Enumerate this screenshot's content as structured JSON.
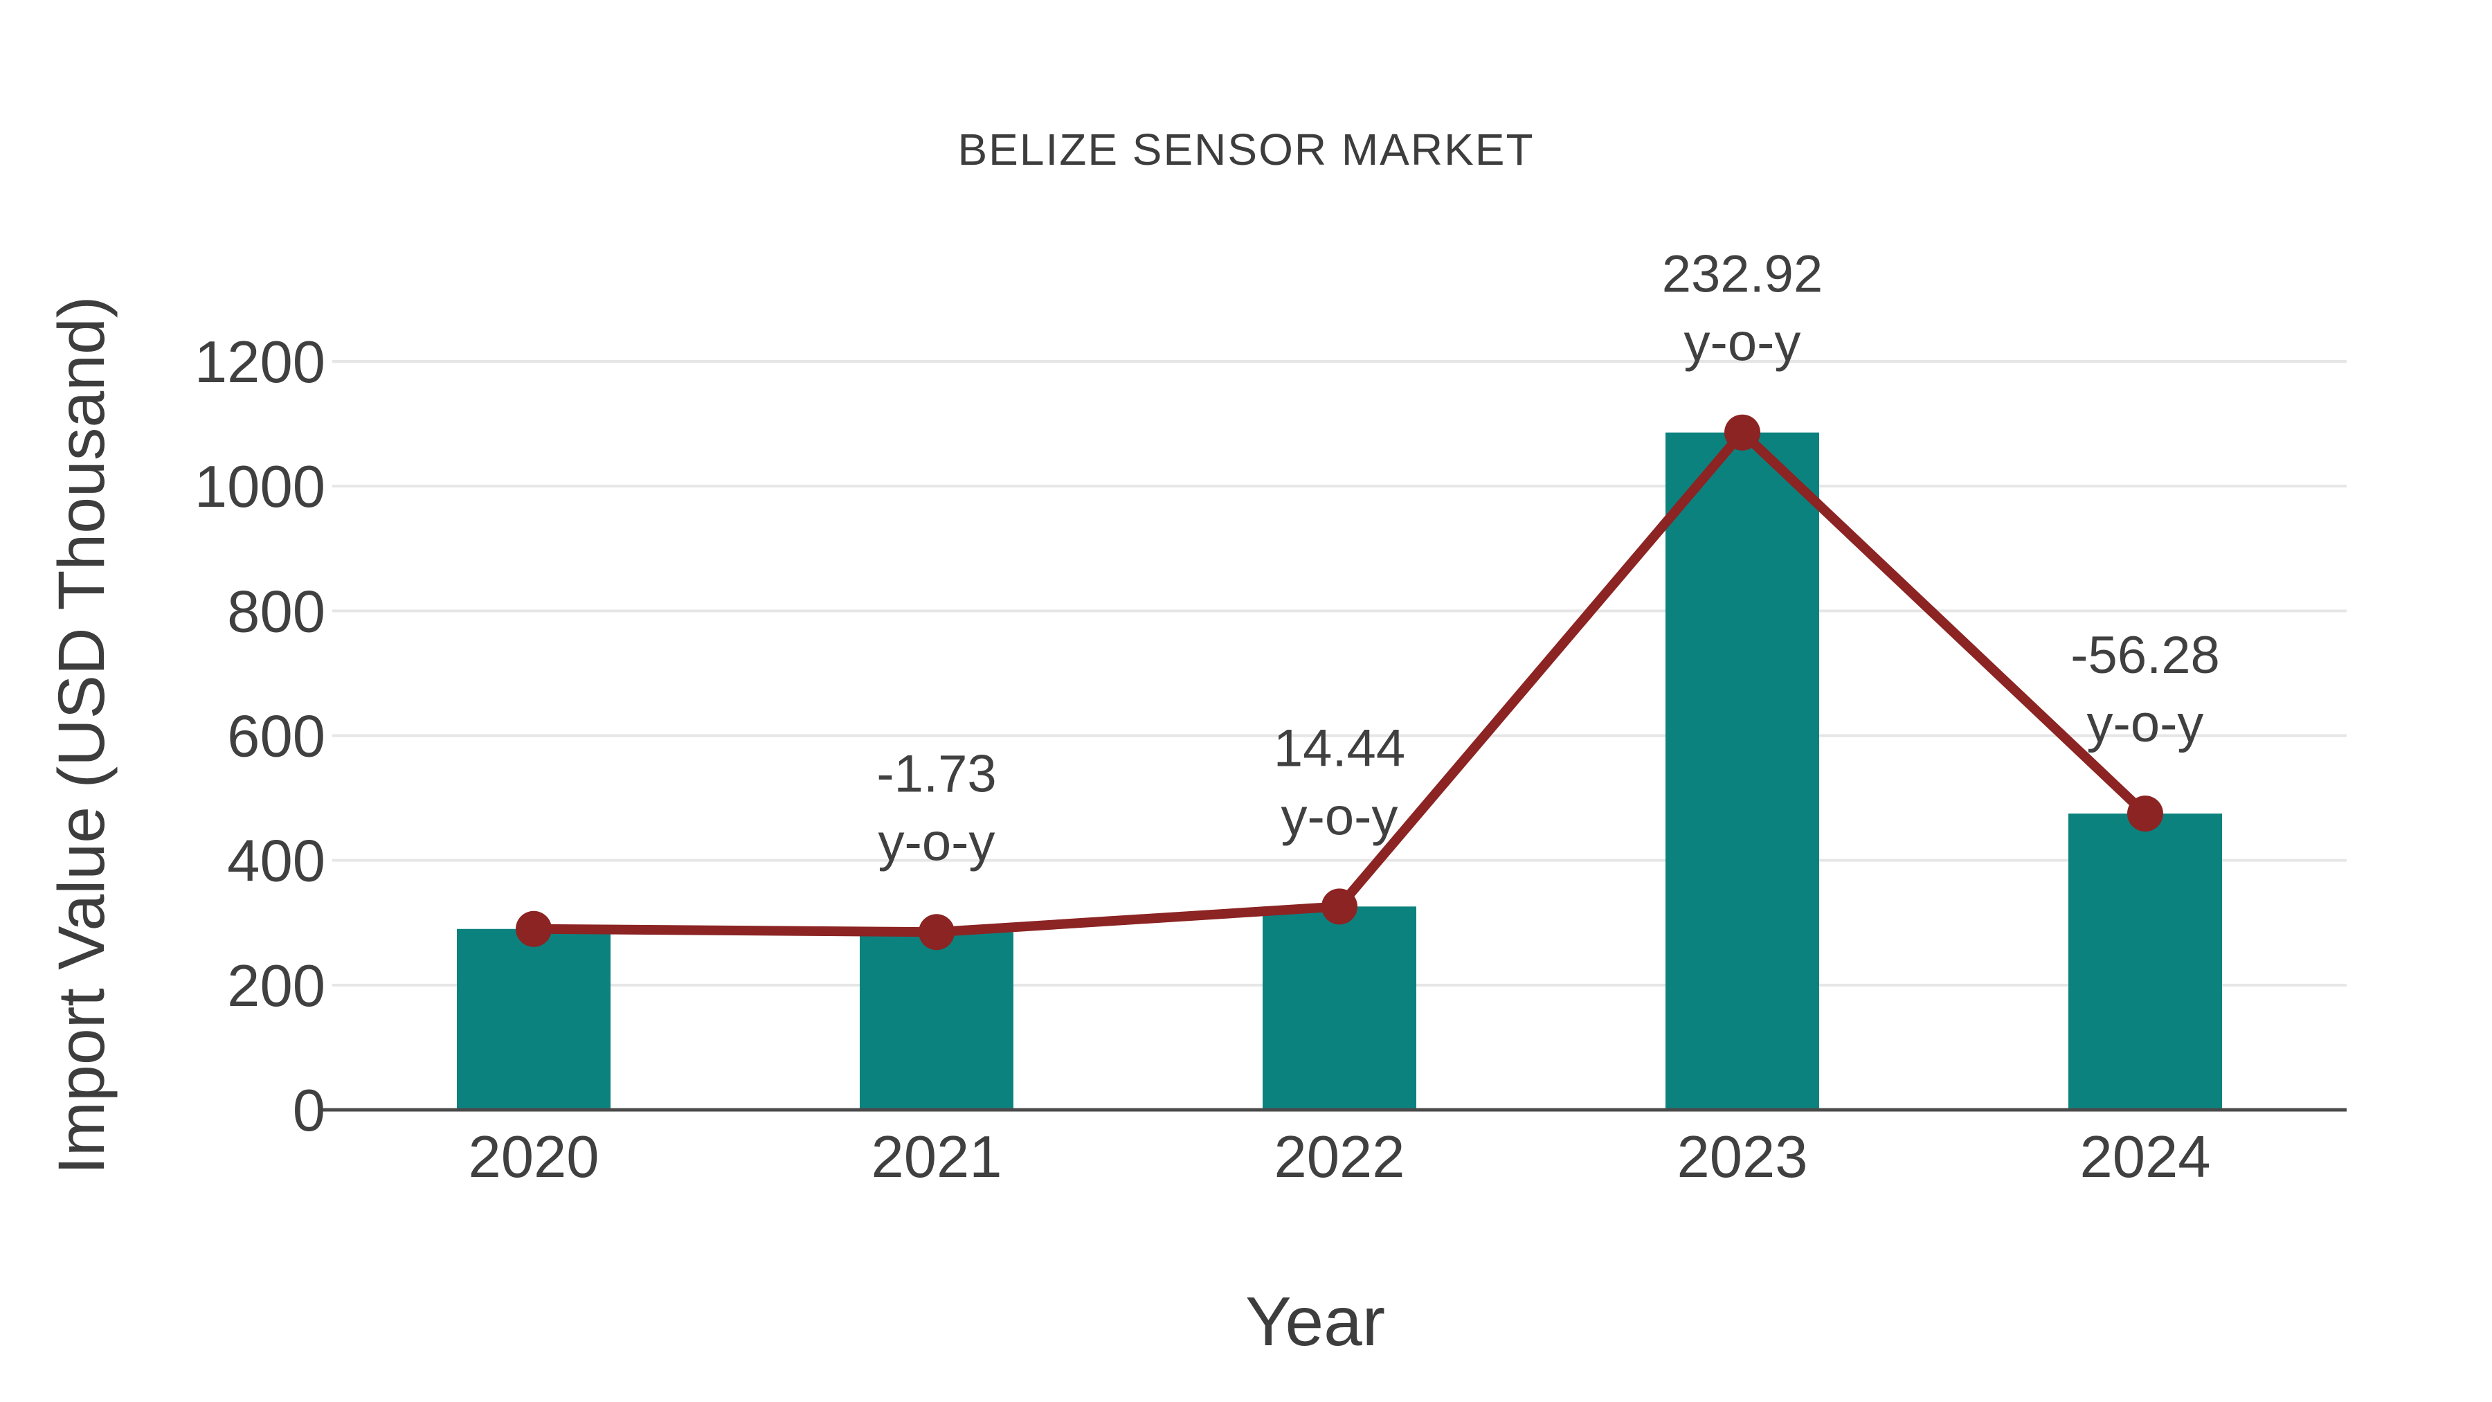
{
  "page": {
    "background": "#ffffff"
  },
  "chart_data": {
    "type": "bar",
    "subtype": "bar-with-line-overlay",
    "title": "BELIZE SENSOR MARKET",
    "xlabel": "Year",
    "ylabel": "Import Value (USD Thousand)",
    "categories": [
      "2020",
      "2021",
      "2022",
      "2023",
      "2024"
    ],
    "series": [
      {
        "name": "import-value-bars",
        "type": "bar",
        "values": [
          290,
          285,
          326,
          1086,
          475
        ]
      },
      {
        "name": "import-value-trend",
        "type": "line",
        "values": [
          290,
          285,
          326,
          1086,
          475
        ]
      }
    ],
    "annotations": [
      {
        "category": "2021",
        "line1": "-1.73",
        "line2": "y-o-y"
      },
      {
        "category": "2022",
        "line1": "14.44",
        "line2": "y-o-y"
      },
      {
        "category": "2023",
        "line1": "232.92",
        "line2": "y-o-y"
      },
      {
        "category": "2024",
        "line1": "-56.28",
        "line2": "y-o-y"
      }
    ],
    "ylim": [
      0,
      1200
    ],
    "yticks": [
      0,
      200,
      400,
      600,
      800,
      1000,
      1200
    ],
    "grid": "horizontal",
    "legend": "none",
    "colors": {
      "bar": "#0c827f",
      "line": "#8b2423",
      "marker": "#8b2423",
      "text": "#404040",
      "grid": "#e6e6e6",
      "axis": "#4a4a4a",
      "background": "#ffffff"
    }
  }
}
